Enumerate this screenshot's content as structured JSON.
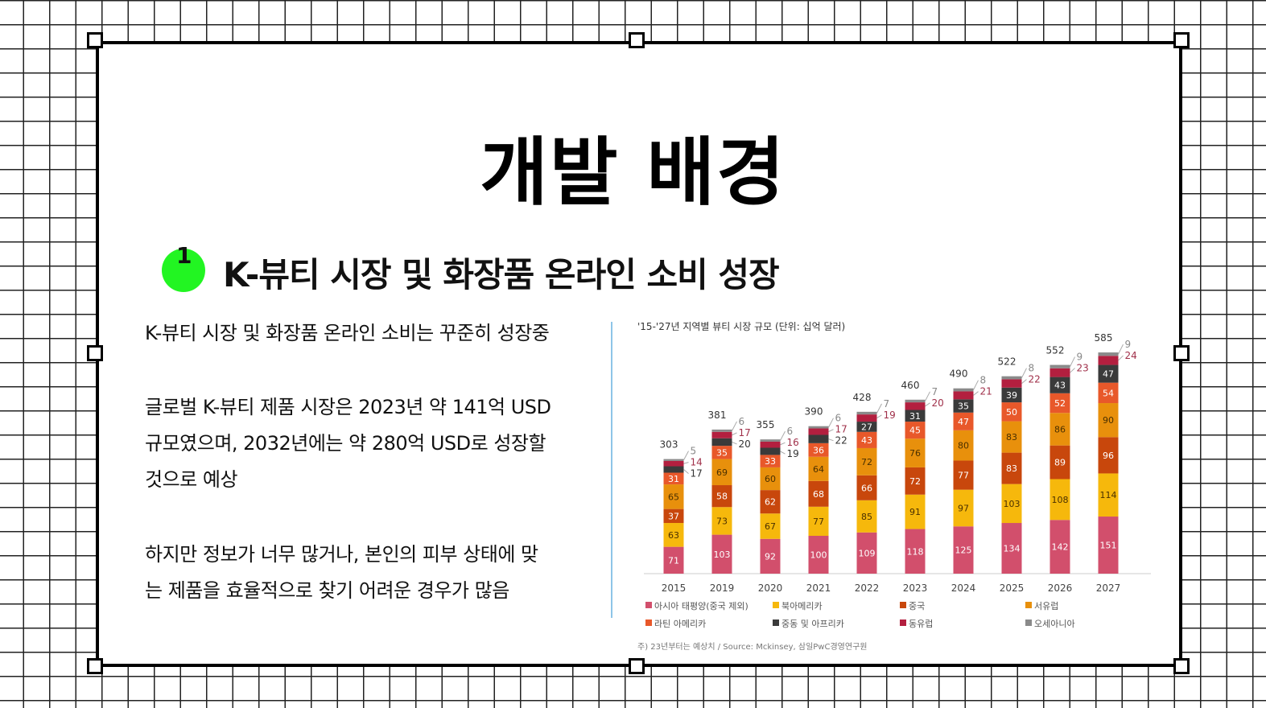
{
  "slide": {
    "title": "개발 배경",
    "badge_number": "1",
    "badge_color": "#22f522",
    "subtitle": "K-뷰티 시장 및 화장품 온라인 소비 성장",
    "paragraphs": [
      "K-뷰티 시장 및 화장품 온라인 소비는 꾸준히 성장중",
      "글로벌 K-뷰티 제품 시장은 2023년 약 141억 USD",
      "규모였으며, 2032년에는 약 280억 USD로 성장할",
      "것으로 예상",
      "하지만 정보가 너무 많거나, 본인의 피부 상태에 맞",
      "는 제품을 효율적으로 찾기 어려운 경우가 많음"
    ]
  },
  "chart_data": {
    "type": "bar",
    "stacked": true,
    "title": "'15-'27년 지역별 뷰티 시장 규모 (단위: 십억 달러)",
    "note": "주) 23년부터는 예상치 / Source: Mckinsey, 삼일PwC경영연구원",
    "categories": [
      "2015",
      "2019",
      "2020",
      "2021",
      "2022",
      "2023",
      "2024",
      "2025",
      "2026",
      "2027"
    ],
    "totals": [
      303,
      381,
      355,
      390,
      428,
      460,
      490,
      522,
      552,
      585
    ],
    "legend_position": "bottom",
    "series": [
      {
        "name": "아시아 태평양(중국 제외)",
        "color": "#d24f6c",
        "values": [
          71,
          103,
          92,
          100,
          109,
          118,
          125,
          134,
          142,
          151
        ]
      },
      {
        "name": "북아메리카",
        "color": "#f6b80c",
        "values": [
          63,
          73,
          67,
          77,
          85,
          91,
          97,
          103,
          108,
          114
        ]
      },
      {
        "name": "중국",
        "color": "#c8470c",
        "values": [
          37,
          58,
          62,
          68,
          66,
          72,
          77,
          83,
          89,
          96
        ]
      },
      {
        "name": "서유럽",
        "color": "#e8900c",
        "values": [
          65,
          69,
          60,
          64,
          72,
          76,
          80,
          83,
          86,
          90
        ]
      },
      {
        "name": "라틴 아메리카",
        "color": "#e8582a",
        "values": [
          31,
          35,
          33,
          36,
          43,
          45,
          47,
          50,
          52,
          54
        ]
      },
      {
        "name": "중동 및 아프리카",
        "color": "#3a3a3a",
        "values": [
          17,
          20,
          19,
          22,
          27,
          31,
          35,
          39,
          43,
          47
        ]
      },
      {
        "name": "동유럽",
        "color": "#b31f3f",
        "values": [
          14,
          17,
          16,
          17,
          19,
          20,
          21,
          22,
          23,
          24
        ]
      },
      {
        "name": "오세아니아",
        "color": "#8a8a8a",
        "values": [
          5,
          6,
          6,
          6,
          7,
          7,
          8,
          8,
          9,
          9
        ]
      }
    ],
    "ylim": [
      0,
      600
    ]
  }
}
